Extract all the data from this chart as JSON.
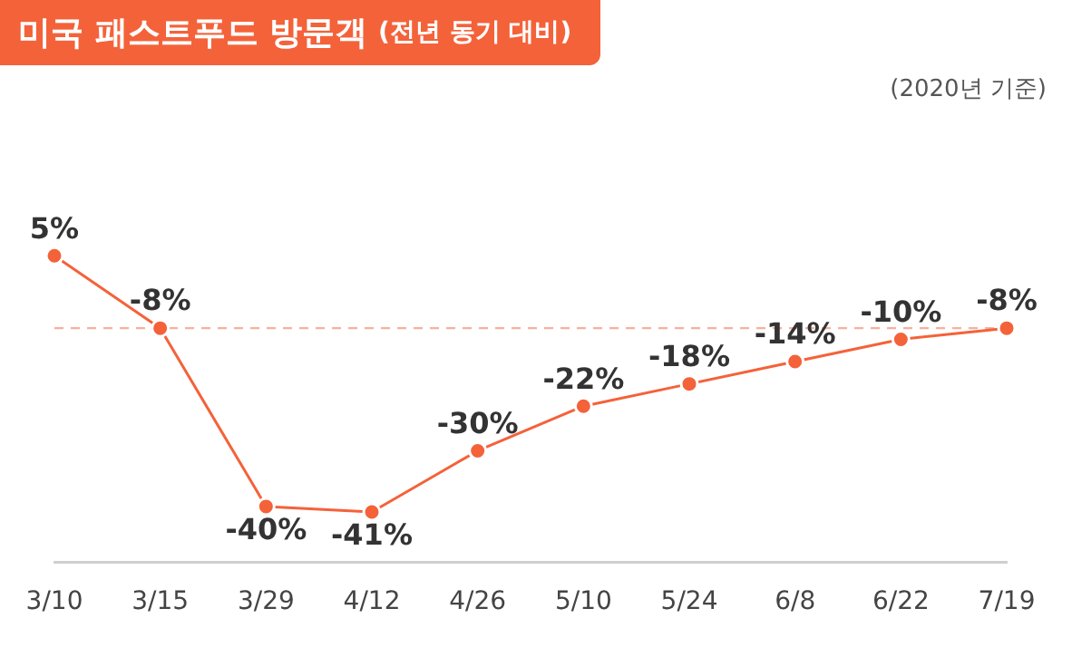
{
  "chart_data": {
    "type": "line",
    "title": "미국 패스트푸드 방문객",
    "subtitle": "(전년 동기 대비)",
    "annotations": [
      "(2020년 기준)"
    ],
    "categories": [
      "3/10",
      "3/15",
      "3/29",
      "4/12",
      "4/26",
      "5/10",
      "5/24",
      "6/8",
      "6/22",
      "7/19"
    ],
    "series": [
      {
        "color": "#f4623a",
        "values": [
          5,
          -8,
          -40,
          -41,
          -30,
          -22,
          -18,
          -14,
          -10,
          -8
        ],
        "value_labels": [
          "5%",
          "-8%",
          "-40%",
          "-41%",
          "-30%",
          "-22%",
          "-18%",
          "-14%",
          "-10%",
          "-8%"
        ]
      }
    ],
    "ref_lines": [
      {
        "axis": "y",
        "value": -8,
        "color": "#f8b09c",
        "line_style": "dashed"
      }
    ],
    "marker": "circle",
    "line_style": "solid",
    "grid": false,
    "legend": false,
    "tick_labels": "x"
  }
}
